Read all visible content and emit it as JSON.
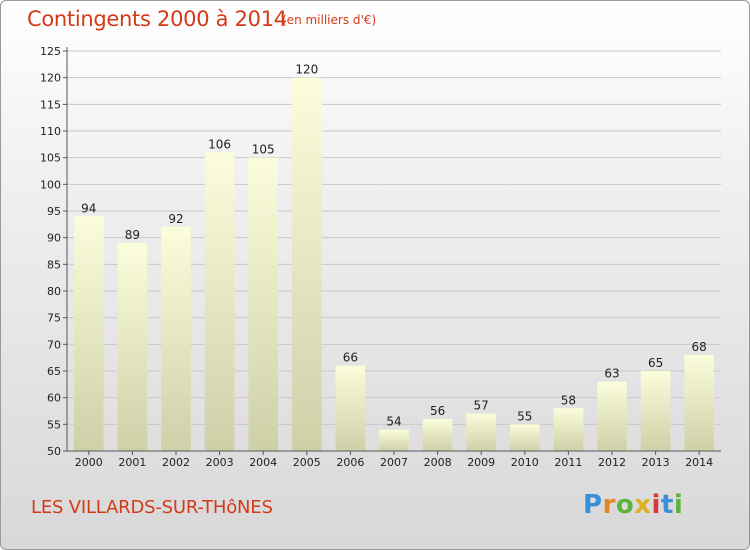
{
  "chart_data": {
    "type": "bar",
    "title": "Contingents 2000 à 2014",
    "subtitle": "(en milliers d'€)",
    "categories": [
      "2000",
      "2001",
      "2002",
      "2003",
      "2004",
      "2005",
      "2006",
      "2007",
      "2008",
      "2009",
      "2010",
      "2011",
      "2012",
      "2013",
      "2014"
    ],
    "values": [
      94,
      89,
      92,
      106,
      105,
      120,
      66,
      54,
      56,
      57,
      55,
      58,
      63,
      65,
      68
    ],
    "ylim": [
      50,
      125
    ],
    "yticks": [
      50,
      55,
      60,
      65,
      70,
      75,
      80,
      85,
      90,
      95,
      100,
      105,
      110,
      115,
      120,
      125
    ],
    "grid": true,
    "legend": "none",
    "colors": {
      "bar_top": "#fbfddb",
      "bar_bottom": "#cfd0a8",
      "text_accent": "#d23a18"
    }
  },
  "footer": {
    "commune": "LES VILLARDS-SUR-THôNES",
    "brand_letters": [
      {
        "ch": "P",
        "color": "#3a8fd8"
      },
      {
        "ch": "r",
        "color": "#e0872a"
      },
      {
        "ch": "o",
        "color": "#5db43a"
      },
      {
        "ch": "x",
        "color": "#e0b020"
      },
      {
        "ch": "i",
        "color": "#d83a3a"
      },
      {
        "ch": "t",
        "color": "#3a8fd8"
      },
      {
        "ch": "i",
        "color": "#5db43a"
      }
    ]
  }
}
